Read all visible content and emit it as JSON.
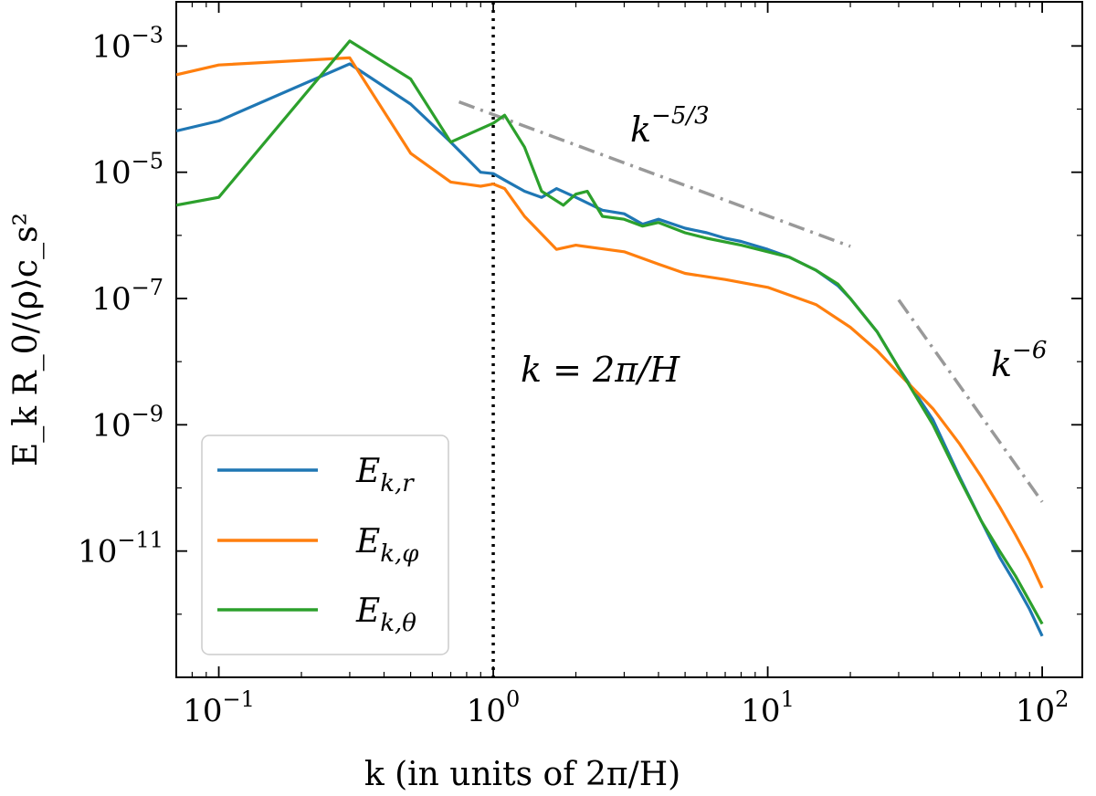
{
  "chart_data": {
    "type": "line",
    "scale": {
      "x": "log",
      "y": "log"
    },
    "xlim": [
      0.07,
      140
    ],
    "ylim": [
      1e-13,
      0.005
    ],
    "xlabel": "k (in units of 2π/H)",
    "ylabel": "E_k R_0/⟨ρ⟩c_s²",
    "x_ticks": [
      {
        "value": 0.1,
        "base": "10",
        "exp": "−1"
      },
      {
        "value": 1,
        "base": "10",
        "exp": "0"
      },
      {
        "value": 10,
        "base": "10",
        "exp": "1"
      },
      {
        "value": 100,
        "base": "10",
        "exp": "2"
      }
    ],
    "y_ticks": [
      {
        "value": 0.001,
        "base": "10",
        "exp": "−3"
      },
      {
        "value": 1e-05,
        "base": "10",
        "exp": "−5"
      },
      {
        "value": 1e-07,
        "base": "10",
        "exp": "−7"
      },
      {
        "value": 1e-09,
        "base": "10",
        "exp": "−9"
      },
      {
        "value": 1e-11,
        "base": "10",
        "exp": "−11"
      }
    ],
    "series": [
      {
        "name": "E_k,r",
        "legend_main": "E",
        "legend_sub": "k,r",
        "color": "#1f77b4",
        "x": [
          0.07,
          0.1,
          0.3,
          0.5,
          0.7,
          0.9,
          1.0,
          1.1,
          1.3,
          1.5,
          1.7,
          2.0,
          2.5,
          3.0,
          3.5,
          4.0,
          5.0,
          6.0,
          7.0,
          8.0,
          10,
          12,
          15,
          18,
          20,
          25,
          30,
          40,
          50,
          60,
          70,
          80,
          90,
          100
        ],
        "y": [
          4.5e-05,
          6.5e-05,
          0.00052,
          0.00012,
          3e-05,
          1e-05,
          9.5e-06,
          7.5e-06,
          5e-06,
          4e-06,
          5.5e-06,
          4e-06,
          2.5e-06,
          2.2e-06,
          1.5e-06,
          1.8e-06,
          1.3e-06,
          1.1e-06,
          9e-07,
          8e-07,
          6e-07,
          4.5e-07,
          2.8e-07,
          1.6e-07,
          1e-07,
          3e-08,
          8e-09,
          1.2e-09,
          1.5e-10,
          3e-11,
          8e-12,
          3e-12,
          1.2e-12,
          4.5e-13
        ]
      },
      {
        "name": "E_k,φ",
        "legend_main": "E",
        "legend_sub": "k,φ",
        "color": "#ff7f0e",
        "x": [
          0.07,
          0.1,
          0.3,
          0.5,
          0.7,
          0.9,
          1.0,
          1.1,
          1.3,
          1.7,
          2.0,
          3.0,
          4.0,
          5.0,
          7.0,
          10,
          15,
          20,
          25,
          30,
          40,
          50,
          60,
          70,
          80,
          90,
          100
        ],
        "y": [
          0.00035,
          0.0005,
          0.00065,
          2e-05,
          7e-06,
          6e-06,
          6.5e-06,
          5.5e-06,
          2e-06,
          6e-07,
          7e-07,
          5.5e-07,
          3.5e-07,
          2.5e-07,
          2e-07,
          1.5e-07,
          8e-08,
          3.5e-08,
          1.5e-08,
          6.5e-09,
          1.8e-09,
          5e-10,
          1.5e-10,
          5e-11,
          1.8e-11,
          7e-12,
          2.6e-12
        ]
      },
      {
        "name": "E_k,θ",
        "legend_main": "E",
        "legend_sub": "k,θ",
        "color": "#2ca02c",
        "x": [
          0.07,
          0.1,
          0.3,
          0.5,
          0.7,
          1.0,
          1.1,
          1.3,
          1.5,
          1.8,
          2.0,
          2.2,
          2.5,
          3.0,
          3.5,
          4.0,
          5.0,
          6.0,
          8.0,
          10,
          12,
          15,
          18,
          20,
          25,
          30,
          40,
          50,
          60,
          70,
          80,
          90,
          100
        ],
        "y": [
          3e-06,
          4e-06,
          0.0012,
          0.0003,
          3e-05,
          6e-05,
          8e-05,
          2.5e-05,
          5e-06,
          3e-06,
          4.5e-06,
          5e-06,
          2e-06,
          1.8e-06,
          1.4e-06,
          1.6e-06,
          1.1e-06,
          9e-07,
          7e-07,
          5.5e-07,
          4.5e-07,
          2.8e-07,
          1.7e-07,
          1e-07,
          3e-08,
          8e-09,
          1e-09,
          1.4e-10,
          3e-11,
          1e-11,
          4e-12,
          1.6e-12,
          7e-13
        ]
      }
    ],
    "reference_lines": [
      {
        "name": "k^-5/3",
        "color": "#999999",
        "style": "dashdot",
        "x": [
          0.75,
          20
        ],
        "y": [
          0.00013,
          6.7e-07
        ]
      },
      {
        "name": "k^-6",
        "color": "#999999",
        "style": "dashdot",
        "x": [
          30,
          100
        ],
        "y": [
          9.5e-08,
          6e-11
        ]
      }
    ],
    "vertical_lines": [
      {
        "name": "k=1",
        "x": 1,
        "color": "#000000",
        "style": "dotted"
      }
    ],
    "annotations": [
      {
        "name": "slope-53",
        "base": "k",
        "exp": "−5/3",
        "position": "upper-middle"
      },
      {
        "name": "slope-6",
        "base": "k",
        "exp": "−6",
        "position": "right"
      },
      {
        "name": "vline-label",
        "text": "k = 2π/H",
        "position": "center-left"
      }
    ],
    "legend": {
      "position": "lower-left"
    }
  }
}
